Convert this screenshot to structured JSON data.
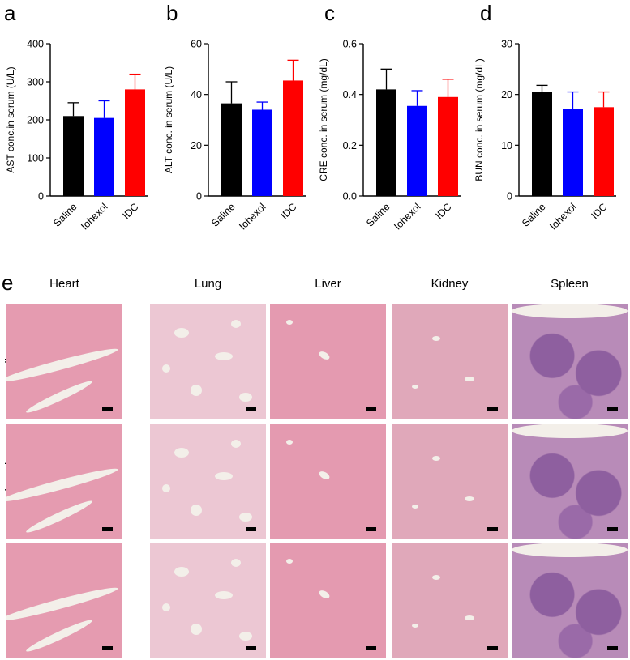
{
  "chart_data": [
    {
      "type": "bar",
      "panel": "a",
      "categories": [
        "Saline",
        "Iohexol",
        "IDC"
      ],
      "values": [
        210,
        205,
        280
      ],
      "errors": [
        35,
        45,
        40
      ],
      "colors": [
        "#000000",
        "#0000ff",
        "#ff0000"
      ],
      "ylabel": "AST conc.in serum (U/L)",
      "ylim": [
        0,
        400
      ],
      "yticks": [
        "0",
        "100",
        "200",
        "300",
        "400"
      ]
    },
    {
      "type": "bar",
      "panel": "b",
      "categories": [
        "Saline",
        "Iohexol",
        "IDC"
      ],
      "values": [
        36.5,
        34,
        45.5
      ],
      "errors": [
        8.5,
        3,
        8
      ],
      "colors": [
        "#000000",
        "#0000ff",
        "#ff0000"
      ],
      "ylabel": "ALT conc. in serum (U/L)",
      "ylim": [
        0,
        60
      ],
      "yticks": [
        "0",
        "20",
        "40",
        "60"
      ]
    },
    {
      "type": "bar",
      "panel": "c",
      "categories": [
        "Saline",
        "Iohexol",
        "IDC"
      ],
      "values": [
        0.42,
        0.355,
        0.39
      ],
      "errors": [
        0.08,
        0.06,
        0.07
      ],
      "colors": [
        "#000000",
        "#0000ff",
        "#ff0000"
      ],
      "ylabel": "CRE conc. in serum (mg/dL)",
      "ylim": [
        0,
        0.6
      ],
      "yticks": [
        "0.0",
        "0.2",
        "0.4",
        "0.6"
      ]
    },
    {
      "type": "bar",
      "panel": "d",
      "categories": [
        "Saline",
        "Iohexol",
        "IDC"
      ],
      "values": [
        20.5,
        17.2,
        17.5
      ],
      "errors": [
        1.3,
        3.3,
        3
      ],
      "colors": [
        "#000000",
        "#0000ff",
        "#ff0000"
      ],
      "ylabel": "BUN conc. in serum (mg/dL)",
      "ylim": [
        0,
        30
      ],
      "yticks": [
        "0",
        "10",
        "20",
        "30"
      ]
    }
  ],
  "histology": {
    "panel": "e",
    "columns": [
      "Heart",
      "Lung",
      "Liver",
      "Kidney",
      "Spleen"
    ],
    "rows": [
      "Saline",
      "Iohexol",
      "IDC"
    ],
    "tissue_colors": {
      "Heart": "#e59bb0",
      "Lung": "#ecc7d3",
      "Liver": "#e49ab0",
      "Kidney": "#e0a8ba",
      "Spleen": "#b88bb8"
    }
  }
}
